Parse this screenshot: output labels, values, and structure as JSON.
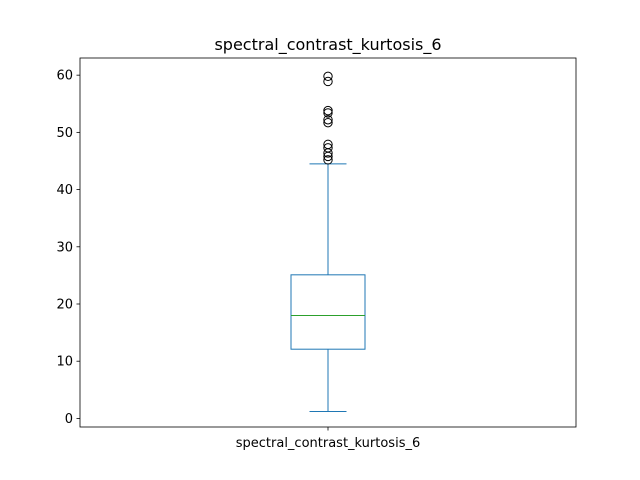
{
  "chart_data": {
    "type": "box",
    "title": "spectral_contrast_kurtosis_6",
    "categories": [
      "spectral_contrast_kurtosis_6"
    ],
    "xlabel": "",
    "ylabel": "",
    "ylim": [
      -1.5,
      63.0
    ],
    "yticks": [
      0,
      10,
      20,
      30,
      40,
      50,
      60
    ],
    "grid": false,
    "boxes": [
      {
        "name": "spectral_contrast_kurtosis_6",
        "whisker_low": 1.2,
        "q1": 12.1,
        "median": 18.0,
        "q3": 25.1,
        "whisker_high": 44.5,
        "outliers": [
          45.2,
          45.8,
          46.4,
          47.3,
          47.9,
          51.7,
          52.2,
          53.4,
          53.8,
          58.9,
          59.8
        ]
      }
    ],
    "colors": {
      "box": "#1f77b4",
      "median": "#2ca02c",
      "outlier": "#000000",
      "axes": "#000000"
    }
  }
}
